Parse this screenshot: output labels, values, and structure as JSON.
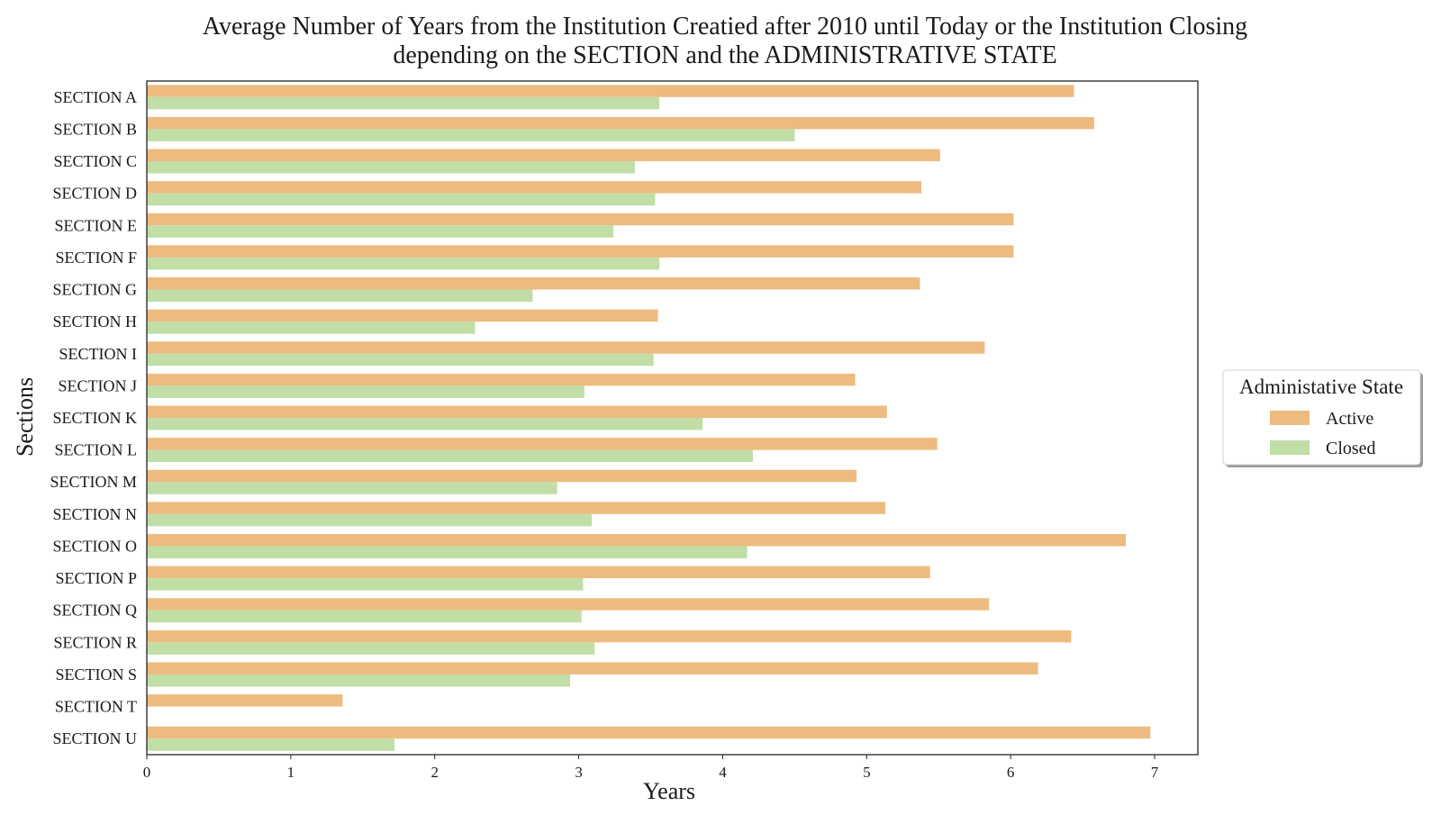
{
  "chart_data": {
    "type": "bar",
    "orientation": "horizontal",
    "title": "Average Number of Years from the Institution Creatied after 2010 until Today or the Institution Closing",
    "subtitle": "depending on the SECTION and the ADMINISTRATIVE STATE",
    "xlabel": "Years",
    "ylabel": "Sections",
    "xlim": [
      0,
      7.3
    ],
    "xticks": [
      0,
      1,
      2,
      3,
      4,
      5,
      6,
      7
    ],
    "grid": false,
    "legend": {
      "title": "Administative State",
      "placement": "center-right, outside plot"
    },
    "categories": [
      "SECTION A",
      "SECTION B",
      "SECTION C",
      "SECTION D",
      "SECTION E",
      "SECTION F",
      "SECTION G",
      "SECTION H",
      "SECTION I",
      "SECTION J",
      "SECTION K",
      "SECTION L",
      "SECTION M",
      "SECTION N",
      "SECTION O",
      "SECTION P",
      "SECTION Q",
      "SECTION R",
      "SECTION S",
      "SECTION T",
      "SECTION U"
    ],
    "series": [
      {
        "name": "Active",
        "color": "#edbb80",
        "values": [
          6.44,
          6.58,
          5.51,
          5.38,
          6.02,
          6.02,
          5.37,
          3.55,
          5.82,
          4.92,
          5.14,
          5.49,
          4.93,
          5.13,
          6.8,
          5.44,
          5.85,
          6.42,
          6.19,
          1.36,
          6.97
        ]
      },
      {
        "name": "Closed",
        "color": "#c1dea7",
        "values": [
          3.56,
          4.5,
          3.39,
          3.53,
          3.24,
          3.56,
          2.68,
          2.28,
          3.52,
          3.04,
          3.86,
          4.21,
          2.85,
          3.09,
          4.17,
          3.03,
          3.02,
          3.11,
          2.94,
          null,
          1.72
        ]
      }
    ]
  }
}
